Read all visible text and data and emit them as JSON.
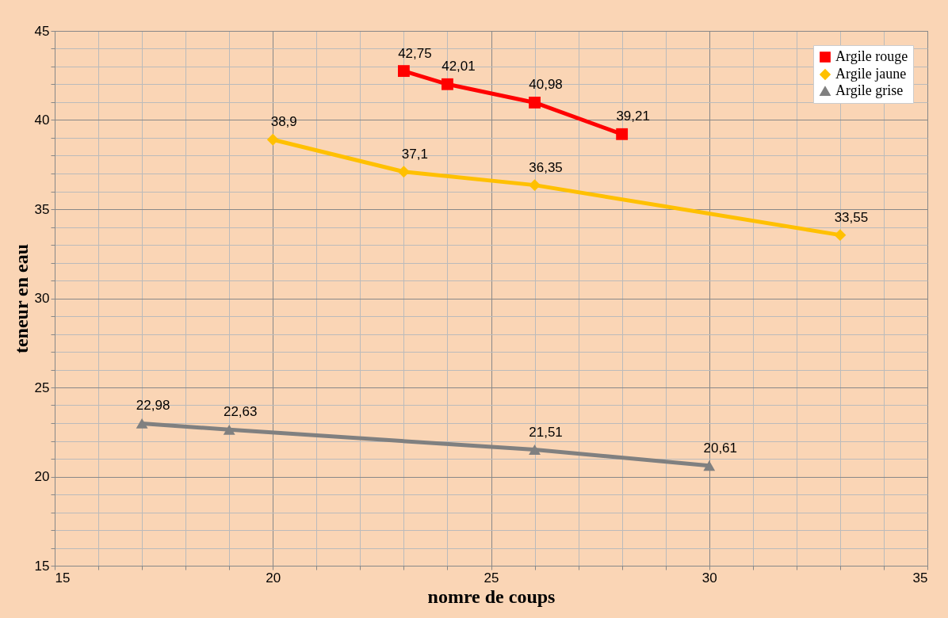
{
  "chart_data": {
    "type": "line",
    "xlabel": "nomre de coups",
    "ylabel": "teneur en eau",
    "xlim": [
      15,
      35
    ],
    "ylim": [
      15,
      45
    ],
    "xticks": [
      15,
      {
        "value": 16,
        "label": null
      },
      {
        "value": 17,
        "label": null
      },
      {
        "value": 18,
        "label": null
      },
      {
        "value": 19,
        "label": null
      },
      20,
      {
        "value": 21,
        "label": null
      },
      {
        "value": 22,
        "label": null
      },
      {
        "value": 23,
        "label": null
      },
      {
        "value": 24,
        "label": null
      },
      25,
      {
        "value": 26,
        "label": null
      },
      {
        "value": 27,
        "label": null
      },
      {
        "value": 28,
        "label": null
      },
      {
        "value": 29,
        "label": null
      },
      30,
      {
        "value": 31,
        "label": null
      },
      {
        "value": 32,
        "label": null
      },
      {
        "value": 33,
        "label": null
      },
      {
        "value": 34,
        "label": null
      },
      35
    ],
    "yticks": [
      15,
      {
        "value": 16,
        "label": null
      },
      {
        "value": 17,
        "label": null
      },
      {
        "value": 18,
        "label": null
      },
      {
        "value": 19,
        "label": null
      },
      20,
      {
        "value": 21,
        "label": null
      },
      {
        "value": 22,
        "label": null
      },
      {
        "value": 23,
        "label": null
      },
      {
        "value": 24,
        "label": null
      },
      25,
      {
        "value": 26,
        "label": null
      },
      {
        "value": 27,
        "label": null
      },
      {
        "value": 28,
        "label": null
      },
      {
        "value": 29,
        "label": null
      },
      30,
      {
        "value": 31,
        "label": null
      },
      {
        "value": 32,
        "label": null
      },
      {
        "value": 33,
        "label": null
      },
      {
        "value": 34,
        "label": null
      },
      35,
      {
        "value": 36,
        "label": null
      },
      {
        "value": 37,
        "label": null
      },
      {
        "value": 38,
        "label": null
      },
      {
        "value": 39,
        "label": null
      },
      40,
      {
        "value": 41,
        "label": null
      },
      {
        "value": 42,
        "label": null
      },
      {
        "value": 43,
        "label": null
      },
      {
        "value": 44,
        "label": null
      },
      45
    ],
    "grid": true,
    "legend": "top right",
    "line_style": "solid",
    "series": [
      {
        "name": "Argile rouge",
        "color": "#ff0000",
        "marker": "square",
        "x": [
          23,
          24,
          26,
          28
        ],
        "values": [
          42.75,
          42.01,
          40.98,
          39.21
        ],
        "value_labels": [
          "42,75",
          "42,01",
          "40,98",
          "39,21"
        ]
      },
      {
        "name": "Argile jaune",
        "color": "#ffc000",
        "marker": "diamond",
        "x": [
          20,
          23,
          26,
          33
        ],
        "values": [
          38.9,
          37.1,
          36.35,
          33.55
        ],
        "value_labels": [
          "38,9",
          "37,1",
          "36,35",
          "33,55"
        ]
      },
      {
        "name": "Argile grise",
        "color": "#808080",
        "marker": "triangle",
        "x": [
          17,
          19,
          26,
          30
        ],
        "values": [
          22.98,
          22.63,
          21.51,
          20.61
        ],
        "value_labels": [
          "22,98",
          "22,63",
          "21,51",
          "20,61"
        ]
      }
    ]
  }
}
